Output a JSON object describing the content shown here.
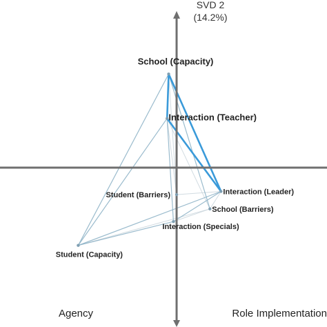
{
  "chart_data": {
    "type": "network-biplot",
    "title": "",
    "y_axis_title": "SVD 2",
    "y_axis_subtitle": "(14.2%)",
    "quadrant_labels": {
      "left": "Agency",
      "right": "Role Implementation"
    },
    "nodes": [
      {
        "id": "school_capacity",
        "label": "School (Capacity)",
        "x": -0.05,
        "y": 0.59,
        "emphasis": true
      },
      {
        "id": "interaction_teacher",
        "label": "Interaction (Teacher)",
        "x": -0.06,
        "y": 0.31,
        "emphasis": true
      },
      {
        "id": "interaction_leader",
        "label": "Interaction (Leader)",
        "x": 0.28,
        "y": -0.15,
        "emphasis": false
      },
      {
        "id": "student_barriers",
        "label": "Student (Barriers)",
        "x": 0.0,
        "y": -0.17,
        "emphasis": false
      },
      {
        "id": "school_barriers",
        "label": "School (Barriers)",
        "x": 0.21,
        "y": -0.26,
        "emphasis": false
      },
      {
        "id": "interaction_specials",
        "label": "Interaction (Specials)",
        "x": -0.02,
        "y": -0.34,
        "emphasis": false
      },
      {
        "id": "student_capacity",
        "label": "Student (Capacity)",
        "x": -0.62,
        "y": -0.49,
        "emphasis": false
      }
    ],
    "edges": [
      {
        "from": "school_capacity",
        "to": "interaction_teacher",
        "strength": "strong"
      },
      {
        "from": "school_capacity",
        "to": "interaction_leader",
        "strength": "strong"
      },
      {
        "from": "interaction_teacher",
        "to": "interaction_leader",
        "strength": "strong"
      },
      {
        "from": "school_capacity",
        "to": "student_capacity",
        "strength": "medium"
      },
      {
        "from": "school_capacity",
        "to": "school_barriers",
        "strength": "medium"
      },
      {
        "from": "school_capacity",
        "to": "student_barriers",
        "strength": "weak"
      },
      {
        "from": "interaction_teacher",
        "to": "student_capacity",
        "strength": "medium"
      },
      {
        "from": "interaction_teacher",
        "to": "interaction_specials",
        "strength": "medium"
      },
      {
        "from": "interaction_teacher",
        "to": "school_barriers",
        "strength": "weak"
      },
      {
        "from": "interaction_teacher",
        "to": "student_barriers",
        "strength": "weak"
      },
      {
        "from": "interaction_leader",
        "to": "student_capacity",
        "strength": "medium"
      },
      {
        "from": "interaction_leader",
        "to": "interaction_specials",
        "strength": "medium"
      },
      {
        "from": "interaction_leader",
        "to": "school_barriers",
        "strength": "weak"
      },
      {
        "from": "interaction_leader",
        "to": "student_barriers",
        "strength": "weak"
      },
      {
        "from": "student_capacity",
        "to": "interaction_specials",
        "strength": "medium"
      },
      {
        "from": "student_capacity",
        "to": "school_barriers",
        "strength": "weak"
      },
      {
        "from": "interaction_specials",
        "to": "school_barriers",
        "strength": "weak"
      }
    ],
    "edge_colors": {
      "strong": "#3a9ad9",
      "medium": "#8fb4c8",
      "weak": "#c9d5dc"
    },
    "node_color": "#7f9fb2",
    "axis_color": "#6f6f6f",
    "xlim": [
      -1,
      1
    ],
    "ylim": [
      -1,
      1
    ],
    "grid": false
  }
}
